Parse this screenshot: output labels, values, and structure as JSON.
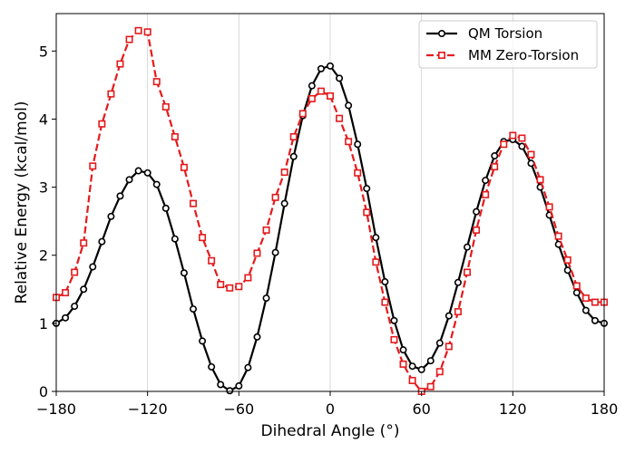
{
  "chart_data": {
    "type": "line",
    "title": "",
    "xlabel": "Dihedral Angle (°)",
    "ylabel": "Relative Energy (kcal/mol)",
    "xlim": [
      -180,
      180
    ],
    "ylim": [
      0,
      5.55
    ],
    "xticks": [
      -180,
      -120,
      -60,
      0,
      60,
      120,
      180
    ],
    "xtick_labels": [
      "−180",
      "−120",
      "−60",
      "0",
      "60",
      "120",
      "180"
    ],
    "yticks": [
      0,
      1,
      2,
      3,
      4,
      5
    ],
    "ytick_labels": [
      "0",
      "1",
      "2",
      "3",
      "4",
      "5"
    ],
    "grid": "x-only",
    "legend_position": "top-right",
    "x": [
      -180,
      -174,
      -168,
      -162,
      -156,
      -150,
      -144,
      -138,
      -132,
      -126,
      -120,
      -114,
      -108,
      -102,
      -96,
      -90,
      -84,
      -78,
      -72,
      -66,
      -60,
      -54,
      -48,
      -42,
      -36,
      -30,
      -24,
      -18,
      -12,
      -6,
      0,
      6,
      12,
      18,
      24,
      30,
      36,
      42,
      48,
      54,
      60,
      66,
      72,
      78,
      84,
      90,
      96,
      102,
      108,
      114,
      120,
      126,
      132,
      138,
      144,
      150,
      156,
      162,
      168,
      174,
      180
    ],
    "series": [
      {
        "name": "QM Torsion",
        "color": "#000000",
        "marker": "circle",
        "linestyle": "solid",
        "values": [
          1.0,
          1.08,
          1.25,
          1.5,
          1.83,
          2.2,
          2.57,
          2.87,
          3.11,
          3.24,
          3.21,
          3.04,
          2.69,
          2.24,
          1.74,
          1.21,
          0.74,
          0.36,
          0.1,
          0.01,
          0.08,
          0.35,
          0.8,
          1.37,
          2.04,
          2.76,
          3.45,
          4.05,
          4.49,
          4.74,
          4.78,
          4.6,
          4.2,
          3.63,
          2.98,
          2.26,
          1.61,
          1.04,
          0.61,
          0.37,
          0.32,
          0.45,
          0.71,
          1.11,
          1.6,
          2.12,
          2.64,
          3.1,
          3.46,
          3.67,
          3.7,
          3.6,
          3.35,
          3.0,
          2.59,
          2.16,
          1.78,
          1.45,
          1.19,
          1.04,
          1.0
        ]
      },
      {
        "name": "MM Zero-Torsion",
        "color": "#e41a1c",
        "marker": "square",
        "linestyle": "dashed",
        "values": [
          1.38,
          1.45,
          1.75,
          2.18,
          3.31,
          3.93,
          4.37,
          4.81,
          5.17,
          5.3,
          5.28,
          4.55,
          4.18,
          3.74,
          3.29,
          2.76,
          2.26,
          1.92,
          1.57,
          1.52,
          1.54,
          1.67,
          2.03,
          2.37,
          2.85,
          3.22,
          3.74,
          4.08,
          4.3,
          4.41,
          4.34,
          4.01,
          3.67,
          3.21,
          2.63,
          1.9,
          1.31,
          0.76,
          0.4,
          0.16,
          0.0,
          0.07,
          0.29,
          0.66,
          1.17,
          1.75,
          2.37,
          2.89,
          3.3,
          3.63,
          3.76,
          3.72,
          3.48,
          3.11,
          2.71,
          2.28,
          1.93,
          1.55,
          1.37,
          1.31,
          1.31
        ]
      }
    ]
  }
}
